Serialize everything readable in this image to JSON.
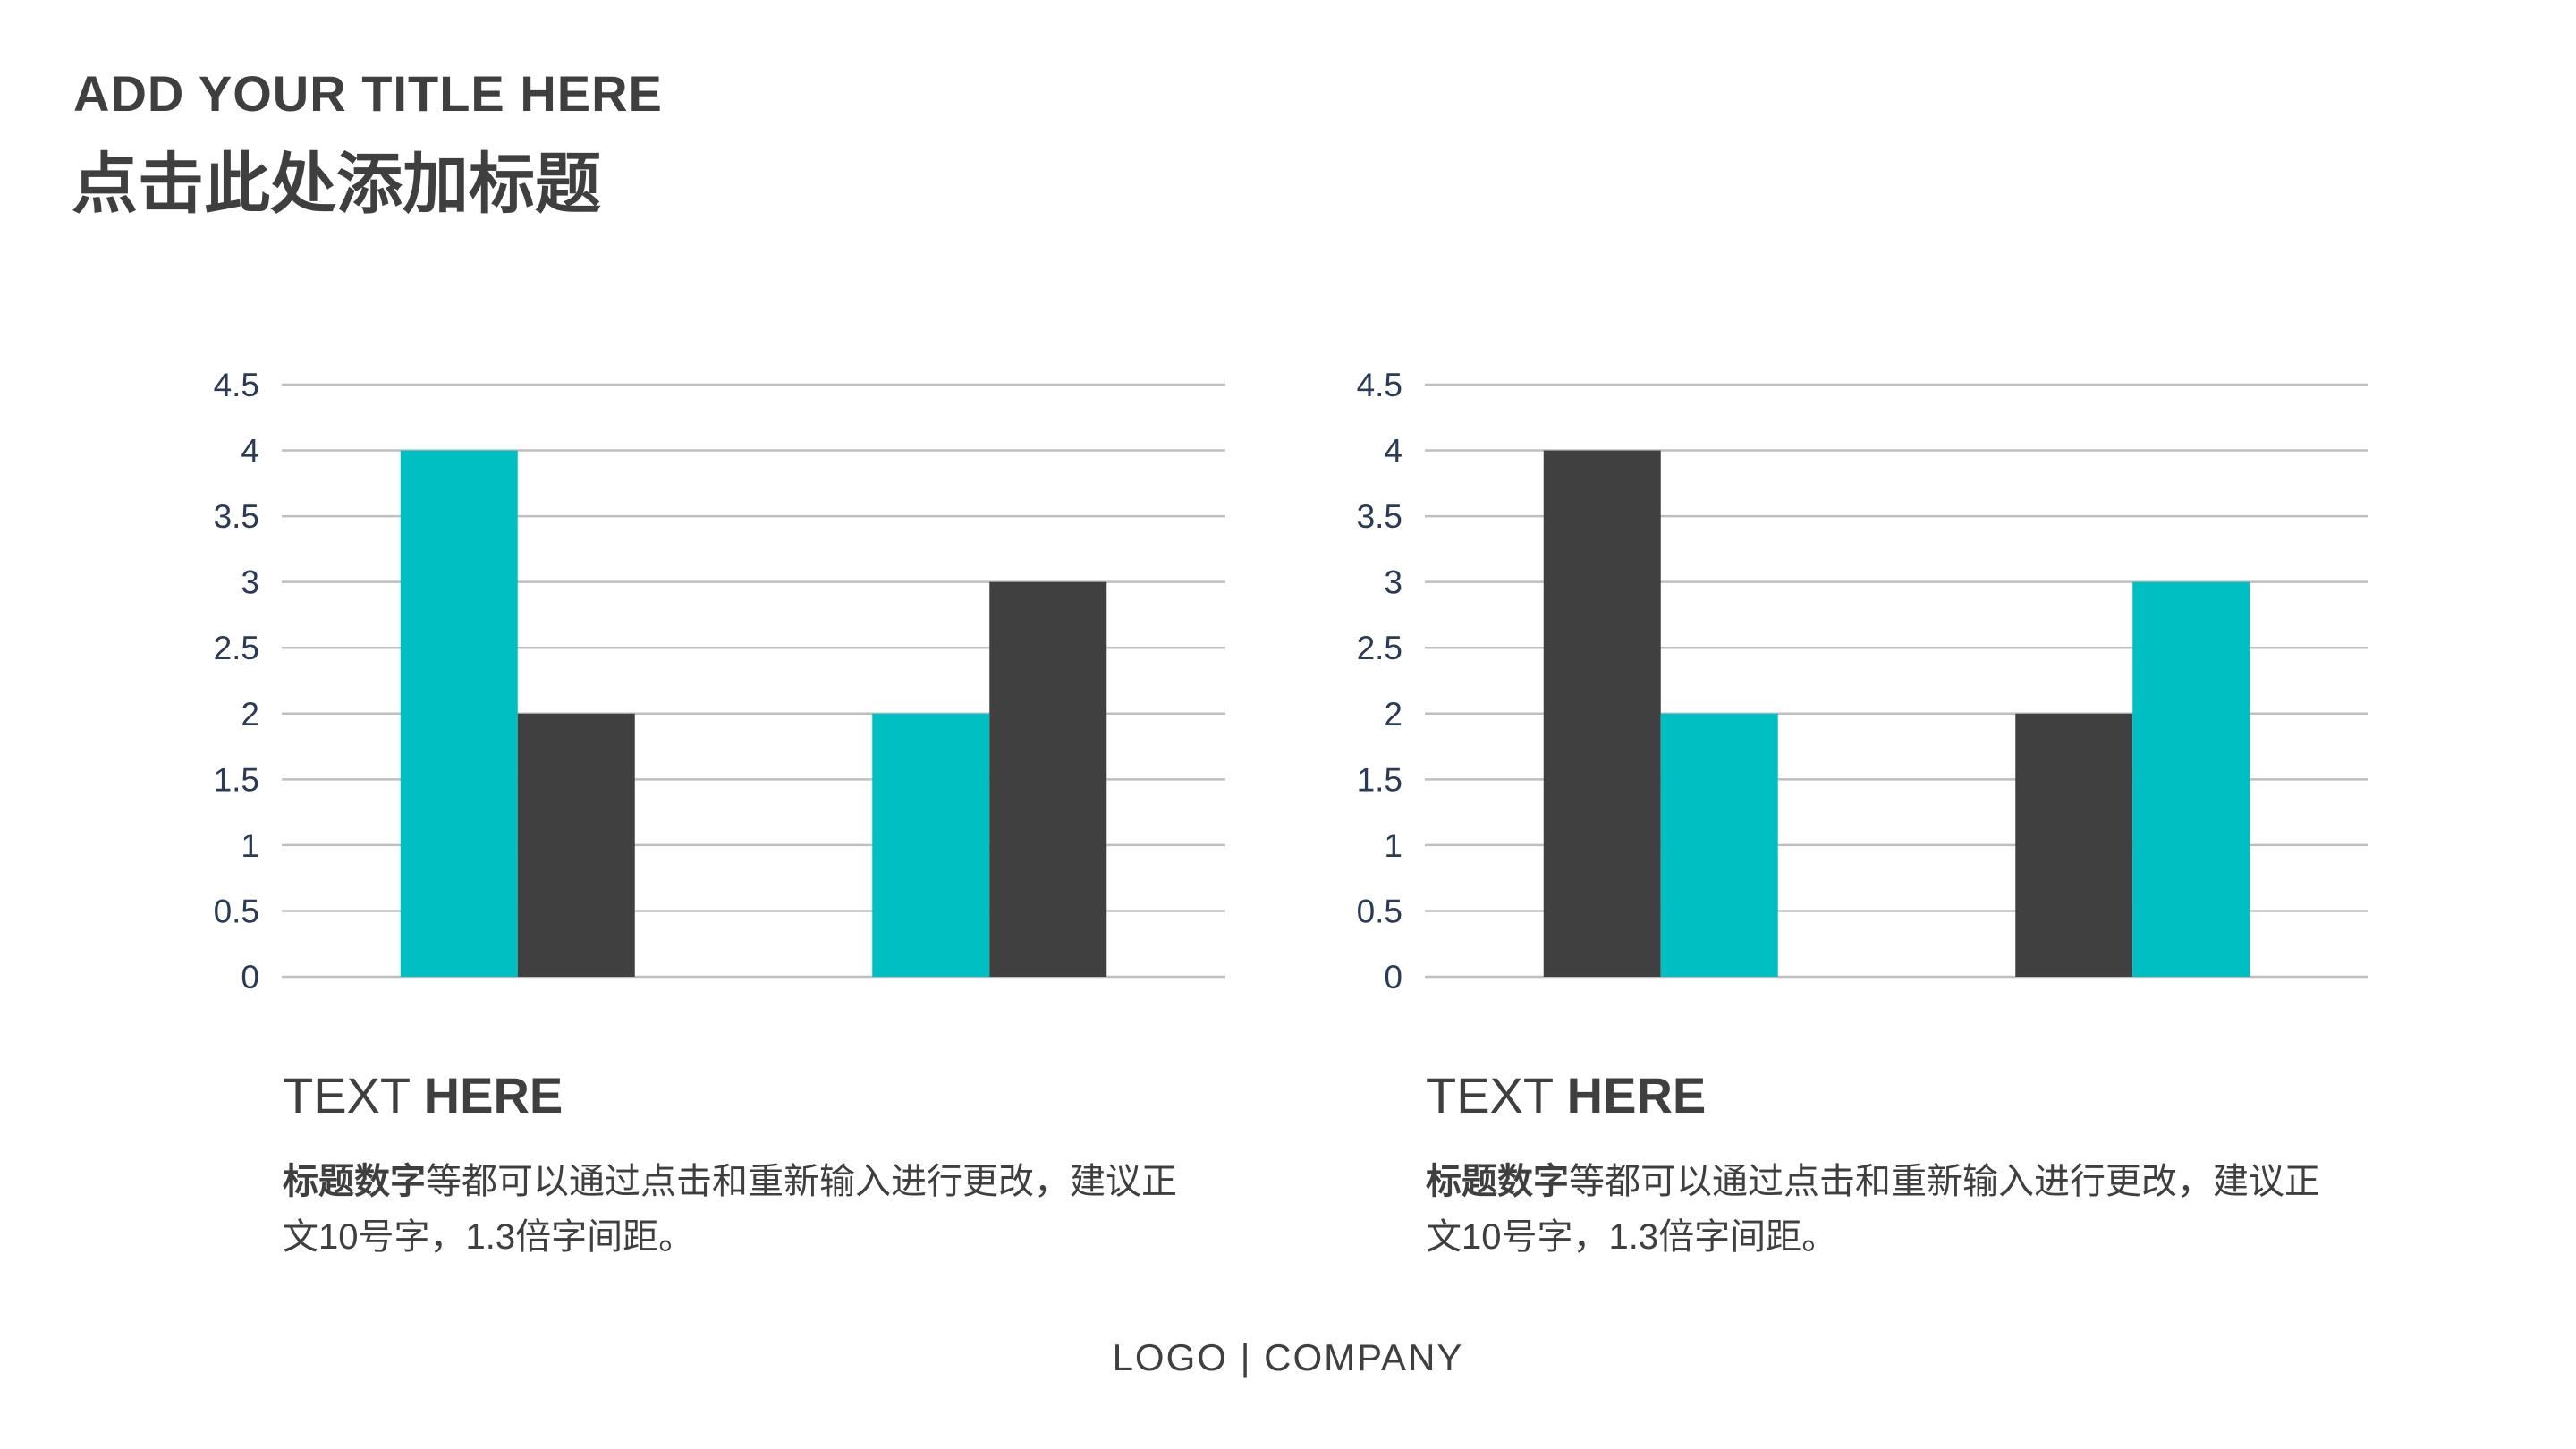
{
  "header": {
    "title_en": "ADD YOUR TITLE HERE",
    "title_cn": "点击此处添加标题"
  },
  "colors": {
    "teal": "#00BFC3",
    "dark": "#404040",
    "grid": "#BFBFBF"
  },
  "chart_data": [
    {
      "type": "bar",
      "categories": [
        "",
        ""
      ],
      "series": [
        {
          "values": [
            4,
            2
          ],
          "color": "#00BFC3"
        },
        {
          "values": [
            2,
            3
          ],
          "color": "#404040"
        }
      ],
      "ylim": [
        0,
        4.5
      ],
      "yticks": [
        "0",
        "0.5",
        "1",
        "1.5",
        "2",
        "2.5",
        "3",
        "3.5",
        "4",
        "4.5"
      ],
      "grid": true,
      "title": "",
      "xlabel": "",
      "ylabel": ""
    },
    {
      "type": "bar",
      "categories": [
        "",
        ""
      ],
      "series": [
        {
          "values": [
            4,
            2
          ],
          "color": "#404040"
        },
        {
          "values": [
            2,
            3
          ],
          "color": "#00BFC3"
        }
      ],
      "ylim": [
        0,
        4.5
      ],
      "yticks": [
        "0",
        "0.5",
        "1",
        "1.5",
        "2",
        "2.5",
        "3",
        "3.5",
        "4",
        "4.5"
      ],
      "grid": true,
      "title": "",
      "xlabel": "",
      "ylabel": ""
    }
  ],
  "blocks": [
    {
      "head_light": "TEXT ",
      "head_bold": "HERE",
      "body_bold": "标题数字",
      "body_text": "等都可以通过点击和重新输入进行更改，建议正文10号字，1.3倍字间距。"
    },
    {
      "head_light": "TEXT ",
      "head_bold": "HERE",
      "body_bold": "标题数字",
      "body_text": "等都可以通过点击和重新输入进行更改，建议正文10号字，1.3倍字间距。"
    }
  ],
  "footer": {
    "text": "LOGO | COMPANY"
  }
}
